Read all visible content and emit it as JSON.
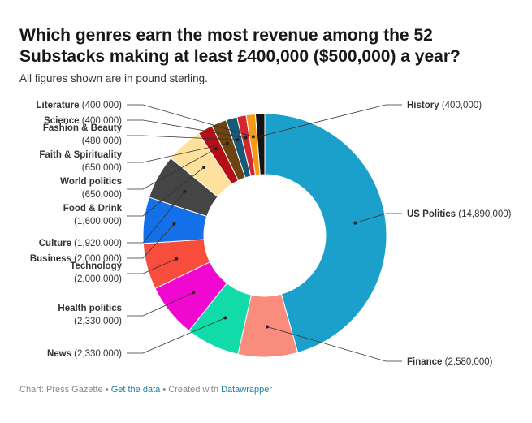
{
  "header": {
    "title": "Which genres earn the most revenue among the 52 Substacks making at least £400,000 ($500,000) a year?",
    "subtitle": "All figures shown are in pound sterling."
  },
  "footer": {
    "source": "Chart: Press Gazette",
    "separator": "•",
    "data_link": "Get the data",
    "created_with": "Created with",
    "tool_link": "Datawrapper"
  },
  "chart_data": {
    "type": "pie",
    "variant": "donut",
    "unit": "GBP",
    "slices": [
      {
        "label": "US Politics",
        "value": 14890000,
        "value_text": "(14,890,000)",
        "color": "#1ba0cc"
      },
      {
        "label": "Finance",
        "value": 2580000,
        "value_text": "(2,580,000)",
        "color": "#fa8c7d"
      },
      {
        "label": "News",
        "value": 2330000,
        "value_text": "(2,330,000)",
        "color": "#11dba9"
      },
      {
        "label": "Health politics",
        "value": 2330000,
        "value_text": "(2,330,000)",
        "color": "#f007d0"
      },
      {
        "label": "Technology",
        "value": 2000000,
        "value_text": "(2,000,000)",
        "color": "#f84c3c"
      },
      {
        "label": "Business",
        "value": 2000000,
        "value_text": "(2,000,000)",
        "color": "#1470e8"
      },
      {
        "label": "Culture",
        "value": 1920000,
        "value_text": "(1,920,000)",
        "color": "#454545"
      },
      {
        "label": "Food & Drink",
        "value": 1600000,
        "value_text": "(1,600,000)",
        "color": "#fde19c"
      },
      {
        "label": "World politics",
        "value": 650000,
        "value_text": "(650,000)",
        "color": "#b50f16"
      },
      {
        "label": "Faith & Spirituality",
        "value": 650000,
        "value_text": "(650,000)",
        "color": "#6b4410"
      },
      {
        "label": "Fashion & Beauty",
        "value": 480000,
        "value_text": "(480,000)",
        "color": "#175a78"
      },
      {
        "label": "Science",
        "value": 400000,
        "value_text": "(400,000)",
        "color": "#d4262e"
      },
      {
        "label": "Literature",
        "value": 400000,
        "value_text": "(400,000)",
        "color": "#f59a16"
      },
      {
        "label": "History",
        "value": 400000,
        "value_text": "(400,000)",
        "color": "#141414"
      }
    ]
  }
}
